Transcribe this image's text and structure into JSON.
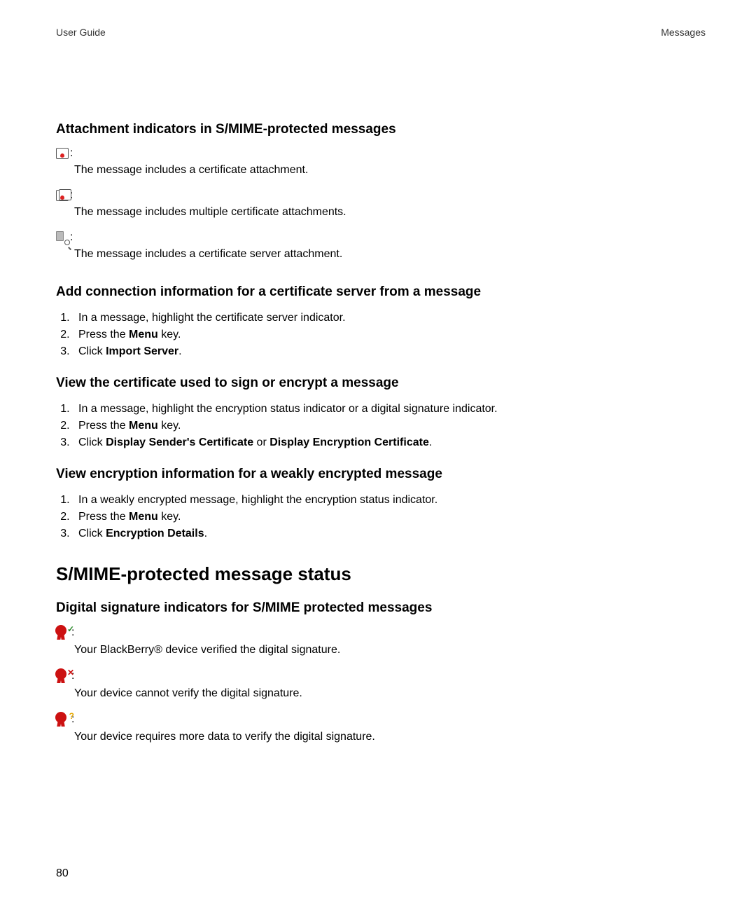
{
  "header": {
    "left": "User Guide",
    "right": "Messages"
  },
  "sections": {
    "attach_h": "Attachment indicators in S/MIME-protected messages",
    "ind1": "The message includes a certificate attachment.",
    "ind2": "The message includes multiple certificate attachments.",
    "ind3": "The message includes a certificate server attachment.",
    "addconn_h": "Add connection information for a certificate server from a message",
    "addconn": {
      "s1": "In a message, highlight the certificate server indicator.",
      "s2a": "Press the ",
      "s2b": "Menu",
      "s2c": " key.",
      "s3a": "Click ",
      "s3b": "Import Server",
      "s3c": "."
    },
    "viewcert_h": "View the certificate used to sign or encrypt a message",
    "viewcert": {
      "s1": "In a message, highlight the encryption status indicator or a digital signature indicator.",
      "s2a": "Press the ",
      "s2b": "Menu",
      "s2c": " key.",
      "s3a": "Click ",
      "s3b": "Display Sender's Certificate",
      "s3c": " or ",
      "s3d": "Display Encryption Certificate",
      "s3e": "."
    },
    "viewenc_h": "View encryption information for a weakly encrypted message",
    "viewenc": {
      "s1": "In a weakly encrypted message, highlight the encryption status indicator.",
      "s2a": "Press the ",
      "s2b": "Menu",
      "s2c": " key.",
      "s3a": "Click ",
      "s3b": "Encryption Details",
      "s3c": "."
    },
    "status_h": "S/MIME-protected message status",
    "digsig_h": "Digital signature indicators for S/MIME protected messages",
    "sig1": "Your BlackBerry® device verified the digital signature.",
    "sig2": "Your device cannot verify the digital signature.",
    "sig3": "Your device requires more data to verify the digital signature."
  },
  "page_number": "80",
  "colors": {
    "text": "#000000",
    "icon_red": "#c11",
    "icon_green": "#2a8a2a",
    "icon_amber": "#e6a800",
    "icon_gray": "#888888"
  }
}
